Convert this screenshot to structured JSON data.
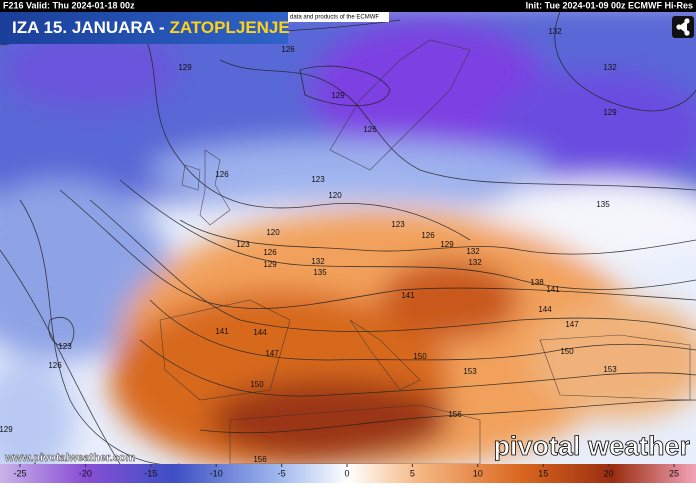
{
  "header": {
    "valid": "F216 Valid: Thu 2024-01-18 00z",
    "init": "Init: Tue 2024-01-09 00z ECMWF Hi-Res",
    "credit": "data and products of the ECMWF"
  },
  "title": {
    "text": "IZA 15. JANUARA -",
    "highlight": "ZATOPLJENJE"
  },
  "contour_labels": [
    "126",
    "129",
    "132",
    "132",
    "129",
    "126",
    "129",
    "126",
    "123",
    "120",
    "135",
    "123",
    "120",
    "123",
    "126",
    "129",
    "132",
    "132",
    "126",
    "129",
    "132",
    "135",
    "138",
    "141",
    "141",
    "144",
    "141",
    "144",
    "147",
    "147",
    "123",
    "126",
    "150",
    "150",
    "150",
    "153",
    "153",
    "156",
    "156",
    "129"
  ],
  "footer": {
    "website": "www.pivotalweather.com",
    "logo": "pivotal weather"
  },
  "colorbar": {
    "ticks": [
      -25,
      -20,
      -15,
      -10,
      -5,
      0,
      5,
      10,
      15,
      20,
      25
    ]
  }
}
